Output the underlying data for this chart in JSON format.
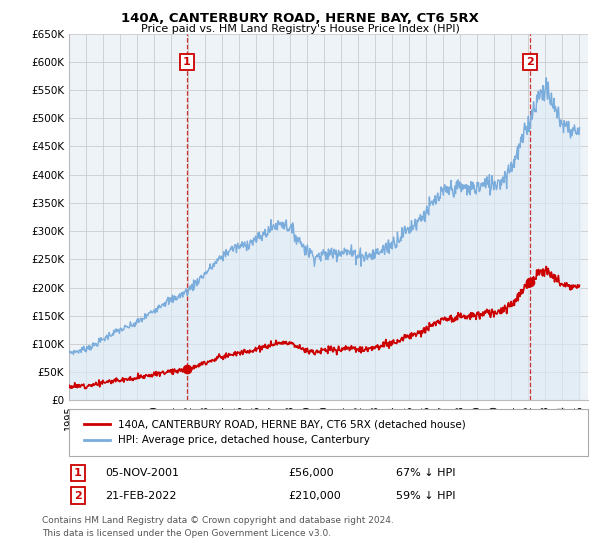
{
  "title": "140A, CANTERBURY ROAD, HERNE BAY, CT6 5RX",
  "subtitle": "Price paid vs. HM Land Registry's House Price Index (HPI)",
  "ylim": [
    0,
    650000
  ],
  "xlim_start": 1995.0,
  "xlim_end": 2025.5,
  "sale1_x": 2001.917,
  "sale1_y": 56000,
  "sale2_x": 2022.12,
  "sale2_y": 210000,
  "sale1_label": "05-NOV-2001",
  "sale1_price": "£56,000",
  "sale1_hpi": "67% ↓ HPI",
  "sale2_label": "21-FEB-2022",
  "sale2_price": "£210,000",
  "sale2_hpi": "59% ↓ HPI",
  "red_line_color": "#cc0000",
  "blue_line_color": "#7aacdc",
  "blue_fill_color": "#dce9f5",
  "legend_line1": "140A, CANTERBURY ROAD, HERNE BAY, CT6 5RX (detached house)",
  "legend_line2": "HPI: Average price, detached house, Canterbury",
  "footnote1": "Contains HM Land Registry data © Crown copyright and database right 2024.",
  "footnote2": "This data is licensed under the Open Government Licence v3.0.",
  "background_color": "#ffffff",
  "grid_color": "#cccccc",
  "chart_bg_color": "#eef3f8"
}
